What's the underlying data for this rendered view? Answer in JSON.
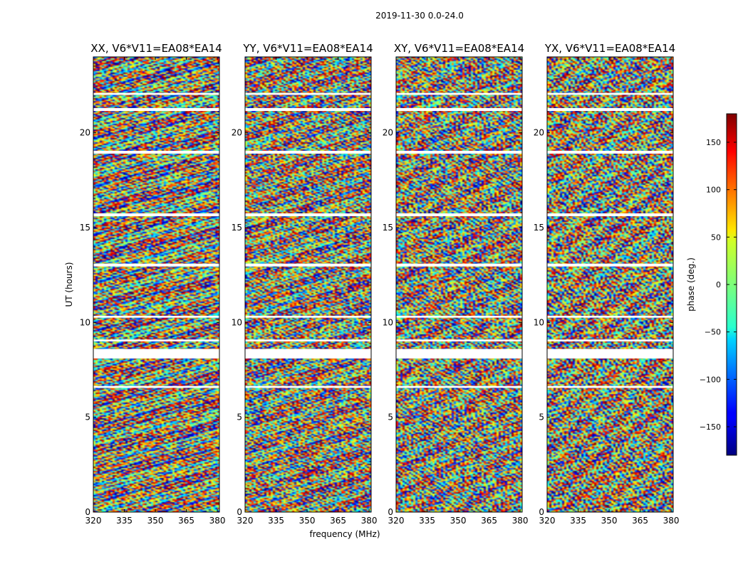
{
  "chart_data": {
    "type": "heatmap",
    "title": "2019-11-30 0.0-24.0",
    "xlabel": "frequency (MHz)",
    "ylabel": "UT (hours)",
    "xlim": [
      320,
      381
    ],
    "ylim": [
      0,
      24
    ],
    "xticks": [
      {
        "value": 320,
        "label": "320"
      },
      {
        "value": 335,
        "label": "335"
      },
      {
        "value": 350,
        "label": "350"
      },
      {
        "value": 365,
        "label": "365"
      },
      {
        "value": 380,
        "label": "380"
      }
    ],
    "yticks": [
      {
        "value": 0,
        "label": "0"
      },
      {
        "value": 5,
        "label": "5"
      },
      {
        "value": 10,
        "label": "10"
      },
      {
        "value": 15,
        "label": "15"
      },
      {
        "value": 20,
        "label": "20"
      }
    ],
    "panels": [
      {
        "name": "XX",
        "title": "XX, V6*V11=EA08*EA14"
      },
      {
        "name": "YY",
        "title": "YY, V6*V11=EA08*EA14"
      },
      {
        "name": "XY",
        "title": "XY, V6*V11=EA08*EA14"
      },
      {
        "name": "YX",
        "title": "YX, V6*V11=EA08*EA14"
      }
    ],
    "flagged_ut_ranges": [
      [
        6.55,
        6.65
      ],
      [
        8.1,
        8.6
      ],
      [
        9.0,
        9.1
      ],
      [
        10.25,
        10.35
      ],
      [
        12.95,
        13.1
      ],
      [
        15.6,
        15.75
      ],
      [
        18.9,
        19.05
      ],
      [
        21.15,
        21.3
      ],
      [
        22.0,
        22.1
      ]
    ],
    "colorbar": {
      "label": "phase (deg.)",
      "range": [
        -180,
        180
      ],
      "colormap": "jet",
      "ticks": [
        {
          "value": 150,
          "label": "150"
        },
        {
          "value": 100,
          "label": "100"
        },
        {
          "value": 50,
          "label": "50"
        },
        {
          "value": 0,
          "label": "0"
        },
        {
          "value": -50,
          "label": "−50"
        },
        {
          "value": -100,
          "label": "−100"
        },
        {
          "value": -150,
          "label": "−150"
        }
      ]
    }
  }
}
